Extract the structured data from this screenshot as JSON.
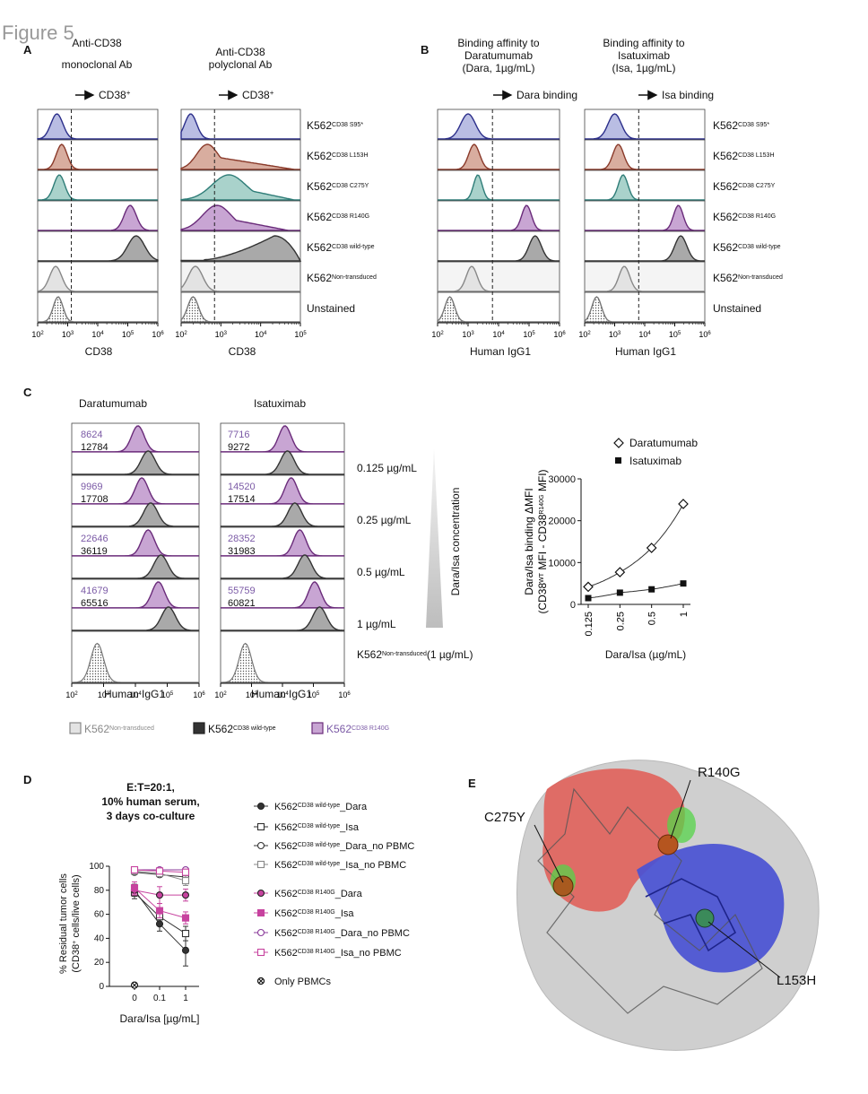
{
  "figure_title": "Figure 5",
  "colors": {
    "s95": "#2b2e8a",
    "s95_fill": "#b9bde3",
    "l153": "#8a3a2a",
    "l153_fill": "#d8ad9f",
    "c275": "#2f7d78",
    "c275_fill": "#a9d2cb",
    "r140": "#6a2b7a",
    "r140_fill": "#c8a5d3",
    "wt": "#333333",
    "wt_fill": "#a9a9a9",
    "nt": "#888888",
    "nt_fill": "#e3e3e3",
    "unst": "#777777",
    "purple_text": "#7b5aa6",
    "row_bg": "#f4f4f4"
  },
  "panelA": {
    "letter": "A",
    "plot1_title": [
      "Anti-CD38",
      "monoclonal Ab"
    ],
    "plot2_title": [
      "Anti-CD38",
      "polyclonal Ab"
    ],
    "gate_label": "CD38",
    "gate_sup": "+",
    "xlabel": "CD38",
    "rows": [
      {
        "base": "K562",
        "sup": "CD38 S95*"
      },
      {
        "base": "K562",
        "sup": "CD38 L153H"
      },
      {
        "base": "K562",
        "sup": "CD38 C275Y"
      },
      {
        "base": "K562",
        "sup": "CD38 R140G"
      },
      {
        "base": "K562",
        "sup": "CD38 wild-type"
      },
      {
        "base": "K562",
        "sup": "Non-transduced"
      },
      {
        "base": "Unstained",
        "sup": ""
      }
    ]
  },
  "panelB": {
    "letter": "B",
    "plot1_title": [
      "Binding affinity to",
      "Daratumumab",
      "(Dara, 1µg/mL)"
    ],
    "plot2_title": [
      "Binding affinity to",
      "Isatuximab",
      "(Isa, 1µg/mL)"
    ],
    "gate1_label": "Dara binding",
    "gate2_label": "Isa binding",
    "xlabel": "Human IgG1",
    "rows": [
      {
        "base": "K562",
        "sup": "CD38 S95*"
      },
      {
        "base": "K562",
        "sup": "CD38 L153H"
      },
      {
        "base": "K562",
        "sup": "CD38 C275Y"
      },
      {
        "base": "K562",
        "sup": "CD38 R140G"
      },
      {
        "base": "K562",
        "sup": "CD38 wild-type"
      },
      {
        "base": "K562",
        "sup": "Non-transduced"
      },
      {
        "base": "Unstained",
        "sup": ""
      }
    ]
  },
  "panelC": {
    "letter": "C",
    "plot1_title": "Daratumumab",
    "plot2_title": "Isatuximab",
    "xlabel": "Human IgG1",
    "concentrations": [
      "0.125 µg/mL",
      "0.25 µg/mL",
      "0.5 µg/mL",
      "1 µg/mL"
    ],
    "nt_row_label": {
      "base": "K562",
      "sup": "Non-transduced",
      "tail": "(1 µg/mL)"
    },
    "gradient_label": "Dara/Isa concentration",
    "dara_mfi": [
      {
        "r140g": "8624",
        "wt": "12784"
      },
      {
        "r140g": "9969",
        "wt": "17708"
      },
      {
        "r140g": "22646",
        "wt": "36119"
      },
      {
        "r140g": "41679",
        "wt": "65516"
      }
    ],
    "isa_mfi": [
      {
        "r140g": "7716",
        "wt": "9272"
      },
      {
        "r140g": "14520",
        "wt": "17514"
      },
      {
        "r140g": "28352",
        "wt": "31983"
      },
      {
        "r140g": "55759",
        "wt": "60821"
      }
    ],
    "legend": [
      {
        "base": "K562",
        "sup": "Non-transduced"
      },
      {
        "base": "K562",
        "sup": "CD38 wild-type"
      },
      {
        "base": "K562",
        "sup": "CD38 R140G"
      }
    ]
  },
  "panelD": {
    "letter": "D",
    "title": [
      "E:T=20:1,",
      "10% human serum,",
      "3 days co-culture"
    ],
    "ylabel1": "% Residual tumor cells",
    "ylabel2": "(CD38",
    "ylabel2_sup": "+",
    "ylabel2_tail": " cells/live cells)",
    "xlabel": "Dara/Isa [µg/mL]",
    "legend": [
      {
        "base": "K562",
        "sup": "CD38 wild-type",
        "tail": "_Dara"
      },
      {
        "base": "K562",
        "sup": "CD38 wild-type",
        "tail": "_Isa"
      },
      {
        "base": "K562",
        "sup": "CD38 wild-type",
        "tail": "_Dara_no PBMC"
      },
      {
        "base": "K562",
        "sup": "CD38 wild-type",
        "tail": "_Isa_no PBMC"
      },
      {
        "base": "K562",
        "sup": "CD38 R140G",
        "tail": "_Dara"
      },
      {
        "base": "K562",
        "sup": "CD38 R140G",
        "tail": "_Isa"
      },
      {
        "base": "K562",
        "sup": "CD38 R140G",
        "tail": "_Dara_no PBMC"
      },
      {
        "base": "K562",
        "sup": "CD38 R140G",
        "tail": "_Isa_no PBMC"
      },
      {
        "base": "Only PBMCs",
        "sup": "",
        "tail": ""
      }
    ]
  },
  "panelE": {
    "letter": "E",
    "labels": [
      "R140G",
      "C275Y",
      "L153H"
    ]
  },
  "chart_data": [
    {
      "id": "C-right",
      "type": "scatter",
      "xlabel": "Dara/Isa (µg/mL)",
      "ylabel": "Dara/Isa binding ΔMFI",
      "ylabel2_parts": [
        "(CD38",
        "WT",
        " MFI - CD38",
        "R140G",
        " MFI)"
      ],
      "categories": [
        "0.125",
        "0.25",
        "0.5",
        "1"
      ],
      "yticks": [
        "0",
        "10000",
        "20000",
        "30000"
      ],
      "ylim": [
        0,
        30000
      ],
      "series": [
        {
          "name": "Daratumumab",
          "values": [
            4200,
            7700,
            13500,
            24000
          ],
          "marker": "diamond-open"
        },
        {
          "name": "Isatuximab",
          "values": [
            1500,
            2800,
            3600,
            5000
          ],
          "marker": "square-filled"
        }
      ]
    },
    {
      "id": "D",
      "type": "line",
      "categories": [
        "0",
        "0.1",
        "1"
      ],
      "yticks": [
        "0",
        "20",
        "40",
        "60",
        "80",
        "100"
      ],
      "ylim": [
        0,
        100
      ],
      "series": [
        {
          "values": [
            80,
            52,
            30
          ],
          "err": [
            5,
            6,
            13
          ],
          "color": "#333333",
          "marker": "circle-filled",
          "open": false
        },
        {
          "values": [
            78,
            58,
            44
          ],
          "err": [
            5,
            5,
            6
          ],
          "color": "#333333",
          "marker": "square-open",
          "open": true
        },
        {
          "values": [
            95,
            93,
            91
          ],
          "err": [
            2,
            2,
            2
          ],
          "color": "#333333",
          "marker": "circle-open",
          "open": true
        },
        {
          "values": [
            96,
            94,
            88
          ],
          "err": [
            2,
            2,
            4
          ],
          "color": "#888888",
          "marker": "square-open",
          "open": true
        },
        {
          "values": [
            80,
            76,
            76
          ],
          "err": [
            4,
            7,
            5
          ],
          "color": "#c7439f",
          "marker": "circle-filled",
          "open": false
        },
        {
          "values": [
            82,
            63,
            57
          ],
          "err": [
            5,
            6,
            5
          ],
          "color": "#c7439f",
          "marker": "square-filled",
          "open": false
        },
        {
          "values": [
            97,
            97,
            97
          ],
          "err": [
            1,
            1,
            1
          ],
          "color": "#8a3a9a",
          "marker": "circle-open",
          "open": true
        },
        {
          "values": [
            97,
            96,
            95
          ],
          "err": [
            1,
            1,
            1
          ],
          "color": "#c7439f",
          "marker": "square-open",
          "open": true
        },
        {
          "values": [
            1,
            null,
            null
          ],
          "err": [
            0,
            0,
            0
          ],
          "color": "#111111",
          "marker": "circle-x",
          "open": true
        }
      ]
    }
  ]
}
